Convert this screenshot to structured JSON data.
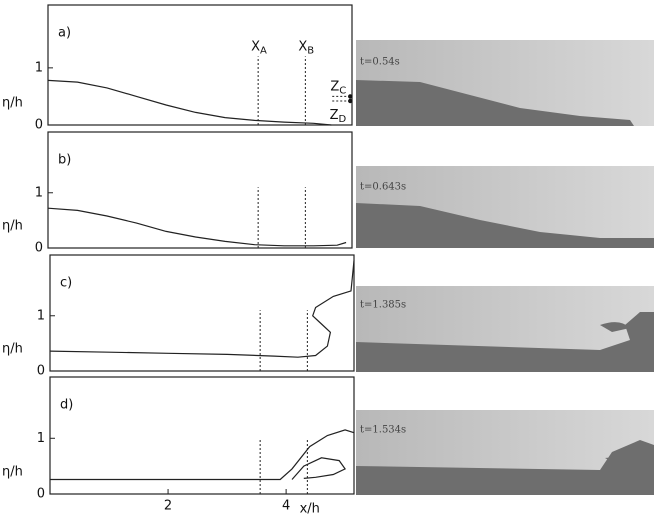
{
  "chart_data": [
    {
      "type": "line",
      "title": "a)",
      "ylabel": "η/h",
      "snapshot": "t=0.54s",
      "xlim": [
        0,
        5.15
      ],
      "ylim": [
        0,
        2.1
      ],
      "yticks": [
        0,
        1
      ],
      "xticks": [],
      "series": [
        {
          "x": [
            0,
            0.5,
            1,
            1.5,
            2,
            2.5,
            3,
            3.5,
            4,
            4.5,
            4.8
          ],
          "values": [
            0.78,
            0.75,
            0.65,
            0.5,
            0.35,
            0.22,
            0.13,
            0.08,
            0.05,
            0.03,
            0
          ]
        }
      ],
      "vlines": [
        {
          "label": "X",
          "subscript": "A",
          "x": 3.56,
          "top": 1.2
        },
        {
          "label": "X",
          "subscript": "B",
          "x": 4.36,
          "top": 1.2
        }
      ],
      "points": [
        {
          "label": "Z",
          "subscript": "C",
          "x": 5.12,
          "y": 0.5
        },
        {
          "label": "Z",
          "subscript": "D",
          "x": 5.12,
          "y": 0.42
        }
      ]
    },
    {
      "type": "line",
      "title": "b)",
      "ylabel": "η/h",
      "snapshot": "t=0.643s",
      "xlim": [
        0,
        5.15
      ],
      "ylim": [
        0,
        2.1
      ],
      "yticks": [
        0,
        1
      ],
      "xticks": [],
      "series": [
        {
          "x": [
            0,
            0.5,
            1,
            1.5,
            2,
            2.5,
            3,
            3.5,
            4,
            4.5,
            4.9,
            5.05
          ],
          "values": [
            0.72,
            0.68,
            0.58,
            0.45,
            0.3,
            0.2,
            0.12,
            0.06,
            0.04,
            0.04,
            0.05,
            0.1
          ]
        }
      ],
      "vlines": [
        {
          "x": 3.56,
          "top": 1.1
        },
        {
          "x": 4.36,
          "top": 1.1
        }
      ]
    },
    {
      "type": "line",
      "title": "c)",
      "ylabel": "η/h",
      "snapshot": "t=1.385s",
      "xlim": [
        0,
        5.15
      ],
      "ylim": [
        0,
        2.1
      ],
      "yticks": [
        0,
        1
      ],
      "xticks": [],
      "series": [
        {
          "x": [
            0,
            1,
            2,
            3,
            3.8,
            4.2,
            4.5,
            4.7,
            4.75,
            4.6,
            4.45,
            4.5,
            4.8,
            5.1,
            5.15
          ],
          "values": [
            0.36,
            0.34,
            0.32,
            0.3,
            0.27,
            0.25,
            0.28,
            0.45,
            0.7,
            0.85,
            1.0,
            1.15,
            1.35,
            1.45,
            2.0
          ]
        }
      ],
      "vlines": [
        {
          "x": 3.56,
          "top": 1.1
        },
        {
          "x": 4.36,
          "top": 1.1
        }
      ]
    },
    {
      "type": "line",
      "title": "d)",
      "ylabel": "η/h",
      "snapshot": "t=1.534s",
      "xlabel": "x/h",
      "xlim": [
        0,
        5.15
      ],
      "ylim": [
        0,
        2.1
      ],
      "yticks": [
        0,
        1
      ],
      "xticks": [
        2,
        4
      ],
      "series": [
        {
          "x": [
            0,
            1,
            2,
            3,
            3.9,
            4.1,
            4.4,
            4.7,
            5.0,
            5.15
          ],
          "values": [
            0.26,
            0.26,
            0.26,
            0.26,
            0.26,
            0.45,
            0.85,
            1.05,
            1.15,
            1.1
          ]
        },
        {
          "x": [
            4.1,
            4.3,
            4.6,
            4.9,
            5.0,
            4.8,
            4.5,
            4.3
          ],
          "values": [
            0.26,
            0.5,
            0.65,
            0.6,
            0.45,
            0.35,
            0.3,
            0.28
          ]
        }
      ],
      "vlines": [
        {
          "x": 3.56,
          "top": 1.0
        },
        {
          "x": 4.36,
          "top": 1.0
        }
      ]
    }
  ]
}
